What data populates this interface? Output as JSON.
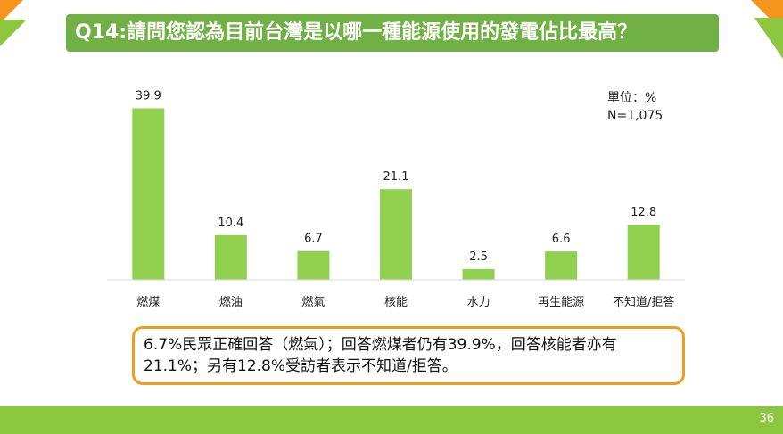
{
  "title": "Q14:請問您認為目前台灣是以哪一種能源使用的發電佔比最高？",
  "unit": "單位：%",
  "sample": "N=1,075",
  "summary": "6.7%民眾正確回答（燃氣）；回答燃煤者仍有39.9%，回答核能者亦有21.1%；另有12.8%受訪者表示不知道/拒答。",
  "page_number": "36",
  "colors": {
    "bar": "#92d050",
    "title_bg": "#71b044",
    "accent_orange": "#f7941d",
    "accent_green": "#8dc63f",
    "summary_border": "#f29c1b"
  },
  "chart_data": {
    "type": "bar",
    "categories": [
      "燃煤",
      "燃油",
      "燃氣",
      "核能",
      "水力",
      "再生能源",
      "不知道/拒答"
    ],
    "values": [
      39.9,
      10.4,
      6.7,
      21.1,
      2.5,
      6.6,
      12.8
    ],
    "value_labels": [
      "39.9",
      "10.4",
      "6.7",
      "21.1",
      "2.5",
      "6.6",
      "12.8"
    ],
    "ylim": [
      0,
      40
    ],
    "grid": false,
    "legend": "none"
  }
}
